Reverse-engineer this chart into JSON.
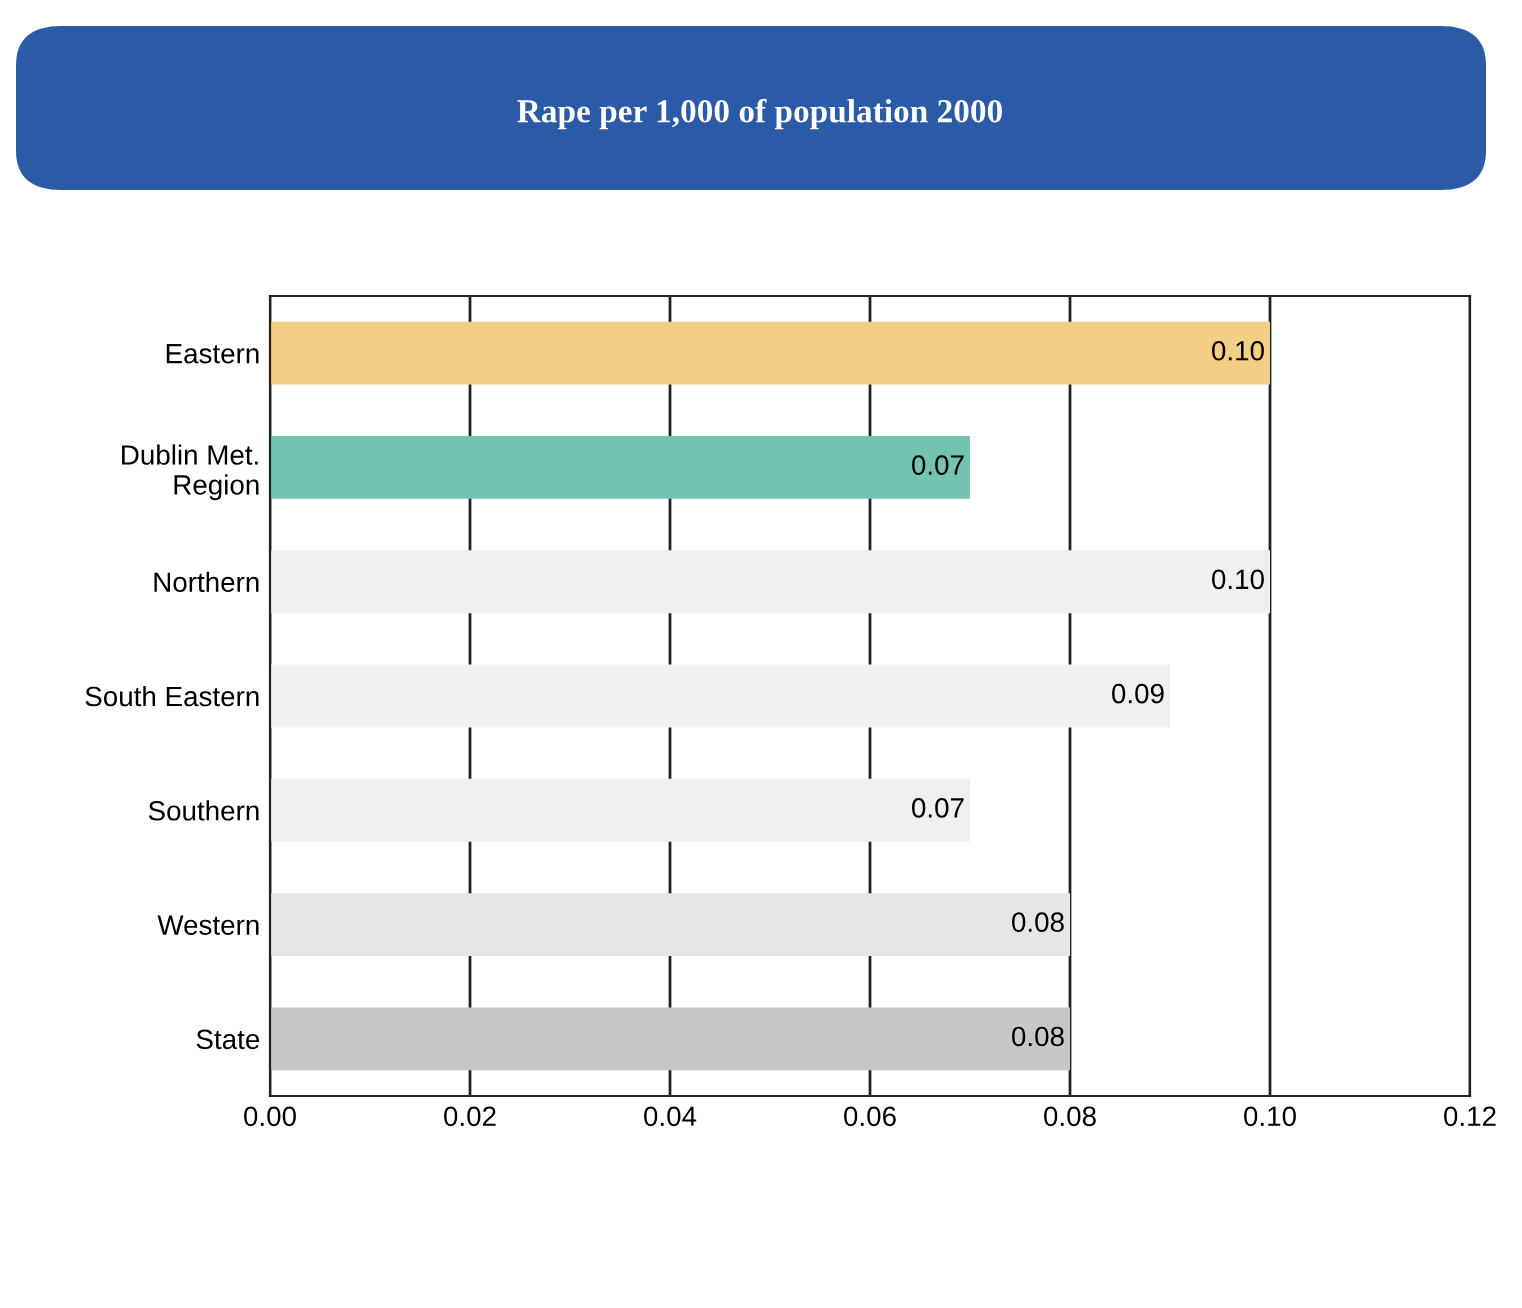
{
  "chart_data": {
    "type": "bar",
    "orientation": "horizontal",
    "title": "Rape per 1,000 of population 2000",
    "categories": [
      "Eastern",
      "Dublin Met.\nRegion",
      "Northern",
      "South Eastern",
      "Southern",
      "Western",
      "State"
    ],
    "values": [
      0.1,
      0.07,
      0.1,
      0.09,
      0.07,
      0.08,
      0.08
    ],
    "value_labels": [
      "0.10",
      "0.07",
      "0.10",
      "0.09",
      "0.07",
      "0.08",
      "0.08"
    ],
    "colors": [
      "#f3cf85",
      "#72c3b1",
      "#f0f0f0",
      "#f0f0f0",
      "#f0f0f0",
      "#e6e6e6",
      "#c9c6c9"
    ],
    "xlim": [
      0,
      0.12
    ],
    "xticks": [
      {
        "value": 0,
        "label": "0.00"
      },
      {
        "value": 0.02,
        "label": "0.02"
      },
      {
        "value": 0.04,
        "label": "0.04"
      },
      {
        "value": 0.06,
        "label": "0.06"
      },
      {
        "value": 0.08,
        "label": "0.08"
      },
      {
        "value": 0.1,
        "label": "0.10"
      },
      {
        "value": 0.12,
        "label": "0.12"
      }
    ],
    "grid": "x",
    "legend": false
  }
}
